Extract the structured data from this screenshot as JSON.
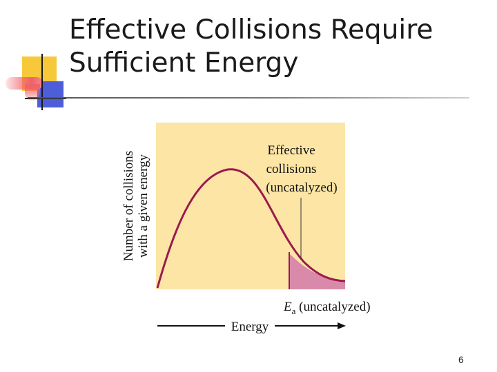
{
  "slide": {
    "title_line1": "Effective Collisions Require",
    "title_line2": "Sufficient Energy",
    "slide_number": "6"
  },
  "figure": {
    "y_label_line1": "Number of collisions",
    "y_label_line2": "with a given energy",
    "annotation_line1": "Effective",
    "annotation_line2": "collisions",
    "annotation_line3": "(uncatalyzed)",
    "ea_symbol": "E",
    "ea_subscript": "a",
    "ea_text": " (uncatalyzed)",
    "x_label": "Energy",
    "colors": {
      "panel_background": "#fde5a6",
      "curve": "#9a1a4e",
      "shaded_region": "#d98aaa",
      "accent_yellow": "#f6c83a",
      "accent_red": "#f0626a",
      "accent_blue": "#4d5ed8"
    }
  }
}
